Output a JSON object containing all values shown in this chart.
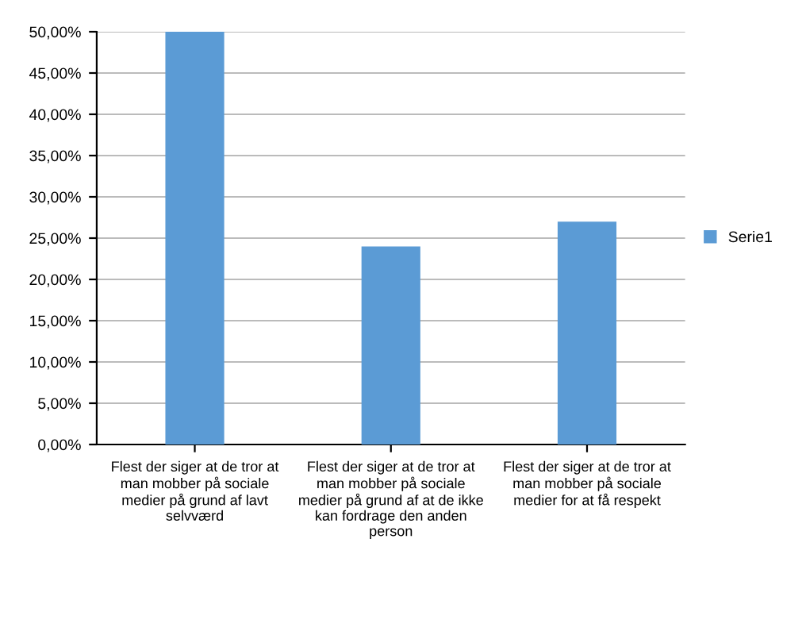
{
  "chart_data": {
    "type": "bar",
    "categories": [
      "Flest der siger at de tror at man mobber på sociale medier på grund af lavt selvværd",
      "Flest der siger at de tror at man mobber på sociale medier på grund af at de ikke kan fordrage den anden person",
      "Flest der siger at de tror at man mobber på sociale medier for at få respekt"
    ],
    "series": [
      {
        "name": "Serie1",
        "color": "#5b9bd5",
        "values": [
          50,
          24,
          27
        ]
      }
    ],
    "ylim": [
      0,
      50
    ],
    "yticks": [
      {
        "value": 0,
        "label": "0,00%"
      },
      {
        "value": 5,
        "label": "5,00%"
      },
      {
        "value": 10,
        "label": "10,00%"
      },
      {
        "value": 15,
        "label": "15,00%"
      },
      {
        "value": 20,
        "label": "20,00%"
      },
      {
        "value": 25,
        "label": "25,00%"
      },
      {
        "value": 30,
        "label": "30,00%"
      },
      {
        "value": 35,
        "label": "35,00%"
      },
      {
        "value": 40,
        "label": "40,00%"
      },
      {
        "value": 45,
        "label": "45,00%"
      },
      {
        "value": 50,
        "label": "50,00%"
      }
    ],
    "grid": "y",
    "legend": "right"
  }
}
